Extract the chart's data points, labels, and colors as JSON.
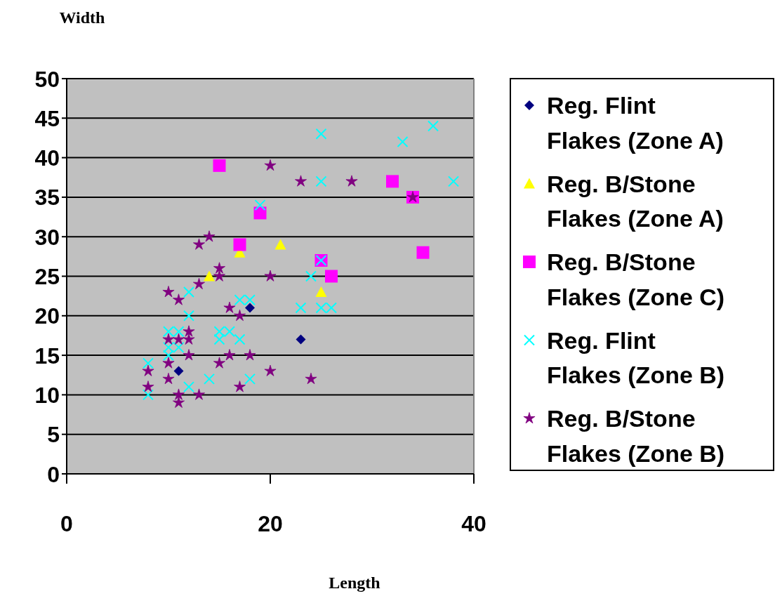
{
  "chart_data": {
    "type": "scatter",
    "xlabel": "Length",
    "ylabel": "Width",
    "xlim": [
      0,
      40
    ],
    "xticks": [
      0,
      20,
      40
    ],
    "ylim": [
      0,
      50
    ],
    "yticks": [
      0,
      5,
      10,
      15,
      20,
      25,
      30,
      35,
      40,
      45,
      50
    ],
    "grid": "y",
    "legend": "right",
    "series": [
      {
        "name": "Reg. Flint Flakes (Zone A)",
        "color": "#000080",
        "marker": "diamond",
        "x": [
          11,
          18,
          23
        ],
        "values": [
          13,
          21,
          17
        ]
      },
      {
        "name": "Reg. B/Stone Flakes (Zone A)",
        "color": "#ffff00",
        "marker": "triangle",
        "x": [
          14,
          17,
          21,
          25
        ],
        "values": [
          25,
          28,
          29,
          23
        ]
      },
      {
        "name": "Reg. B/Stone Flakes (Zone C)",
        "color": "#ff00ff",
        "marker": "square",
        "x": [
          15,
          17,
          19,
          25,
          26,
          32,
          34,
          35
        ],
        "values": [
          39,
          29,
          33,
          27,
          25,
          37,
          35,
          28
        ]
      },
      {
        "name": "Reg. Flint Flakes (Zone B)",
        "color": "#00ffff",
        "marker": "cross",
        "x": [
          12,
          12,
          10,
          11,
          15,
          16,
          15,
          17,
          10,
          11,
          10,
          8,
          8,
          12,
          14,
          18,
          17,
          18,
          23,
          24,
          25,
          33,
          36,
          25,
          38,
          19,
          25,
          25,
          26
        ],
        "values": [
          23,
          20,
          18,
          18,
          18,
          18,
          17,
          17,
          16,
          16,
          15,
          14,
          10,
          11,
          12,
          12,
          22,
          22,
          21,
          25,
          43,
          42,
          44,
          37,
          37,
          34,
          27,
          21,
          21
        ]
      },
      {
        "name": "Reg. B/Stone Flakes (Zone B)",
        "color": "#800080",
        "marker": "star",
        "x": [
          14,
          13,
          15,
          15,
          13,
          20,
          10,
          11,
          16,
          17,
          12,
          10,
          11,
          12,
          12,
          16,
          18,
          10,
          15,
          20,
          8,
          10,
          8,
          17,
          11,
          13,
          11,
          24,
          20,
          23,
          28,
          34
        ],
        "values": [
          30,
          29,
          26,
          25,
          24,
          25,
          23,
          22,
          21,
          20,
          18,
          17,
          17,
          17,
          15,
          15,
          15,
          14,
          14,
          13,
          13,
          12,
          11,
          11,
          10,
          10,
          9,
          12,
          39,
          37,
          37,
          35
        ]
      }
    ]
  }
}
